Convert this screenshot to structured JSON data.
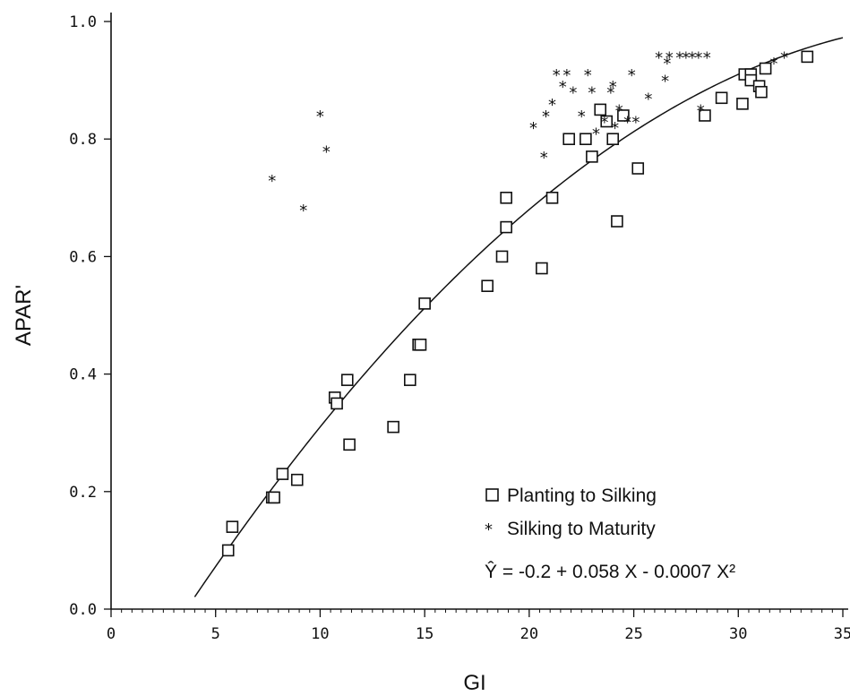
{
  "chart_data": {
    "type": "scatter",
    "xlabel": "GI",
    "ylabel": "APAR'",
    "xlim": [
      0,
      35
    ],
    "ylim": [
      0.0,
      1.0
    ],
    "x_ticks": [
      "0",
      "5",
      "10",
      "15",
      "20",
      "25",
      "30",
      "35"
    ],
    "y_ticks": [
      "0.0",
      "0.2",
      "0.4",
      "0.6",
      "0.8",
      "1.0"
    ],
    "legend_position": "bottom-right",
    "series": [
      {
        "name": "Planting to Silking",
        "marker": "square",
        "points": [
          [
            5.6,
            0.1
          ],
          [
            5.8,
            0.14
          ],
          [
            7.7,
            0.19
          ],
          [
            7.8,
            0.19
          ],
          [
            8.2,
            0.23
          ],
          [
            8.9,
            0.22
          ],
          [
            10.7,
            0.36
          ],
          [
            10.8,
            0.35
          ],
          [
            11.3,
            0.39
          ],
          [
            11.4,
            0.28
          ],
          [
            13.5,
            0.31
          ],
          [
            14.3,
            0.39
          ],
          [
            14.7,
            0.45
          ],
          [
            14.8,
            0.45
          ],
          [
            15.0,
            0.52
          ],
          [
            18.0,
            0.55
          ],
          [
            18.7,
            0.6
          ],
          [
            18.9,
            0.7
          ],
          [
            18.9,
            0.65
          ],
          [
            20.6,
            0.58
          ],
          [
            21.1,
            0.7
          ],
          [
            21.9,
            0.8
          ],
          [
            22.7,
            0.8
          ],
          [
            23.0,
            0.77
          ],
          [
            23.4,
            0.85
          ],
          [
            23.7,
            0.83
          ],
          [
            24.0,
            0.8
          ],
          [
            24.2,
            0.66
          ],
          [
            24.5,
            0.84
          ],
          [
            25.2,
            0.75
          ],
          [
            28.4,
            0.84
          ],
          [
            29.2,
            0.87
          ],
          [
            30.2,
            0.86
          ],
          [
            30.3,
            0.91
          ],
          [
            30.6,
            0.91
          ],
          [
            30.6,
            0.9
          ],
          [
            31.0,
            0.89
          ],
          [
            31.1,
            0.88
          ],
          [
            31.3,
            0.92
          ],
          [
            33.3,
            0.94
          ]
        ]
      },
      {
        "name": "Silking to Maturity",
        "marker": "asterisk",
        "points": [
          [
            7.7,
            0.73
          ],
          [
            9.2,
            0.68
          ],
          [
            10.0,
            0.84
          ],
          [
            10.3,
            0.78
          ],
          [
            20.2,
            0.82
          ],
          [
            20.7,
            0.77
          ],
          [
            20.8,
            0.84
          ],
          [
            21.1,
            0.86
          ],
          [
            21.3,
            0.91
          ],
          [
            21.6,
            0.89
          ],
          [
            21.8,
            0.91
          ],
          [
            22.1,
            0.88
          ],
          [
            22.5,
            0.84
          ],
          [
            22.8,
            0.91
          ],
          [
            23.0,
            0.88
          ],
          [
            23.2,
            0.81
          ],
          [
            23.6,
            0.83
          ],
          [
            23.9,
            0.88
          ],
          [
            24.0,
            0.89
          ],
          [
            24.1,
            0.82
          ],
          [
            24.3,
            0.85
          ],
          [
            24.7,
            0.83
          ],
          [
            24.9,
            0.91
          ],
          [
            25.1,
            0.83
          ],
          [
            25.7,
            0.87
          ],
          [
            26.2,
            0.94
          ],
          [
            26.5,
            0.9
          ],
          [
            26.6,
            0.93
          ],
          [
            26.7,
            0.94
          ],
          [
            27.2,
            0.94
          ],
          [
            27.5,
            0.94
          ],
          [
            27.8,
            0.94
          ],
          [
            28.1,
            0.94
          ],
          [
            28.2,
            0.85
          ],
          [
            28.5,
            0.94
          ],
          [
            31.7,
            0.93
          ],
          [
            32.2,
            0.94
          ]
        ]
      }
    ],
    "fit": {
      "equation": "Ŷ = -0.2 + 0.058 X - 0.0007 X²",
      "intercept": -0.2,
      "linear": 0.058,
      "quadratic": -0.0007,
      "x_range": [
        4.0,
        35.0
      ]
    }
  },
  "legend": {
    "square_label": "Planting to Silking",
    "star_label": "Silking to Maturity",
    "star_symbol": "*",
    "equation_text": "Ŷ = -0.2 + 0.058 X - 0.0007 X²"
  },
  "colors": {
    "ink": "#111111",
    "background": "#ffffff"
  }
}
